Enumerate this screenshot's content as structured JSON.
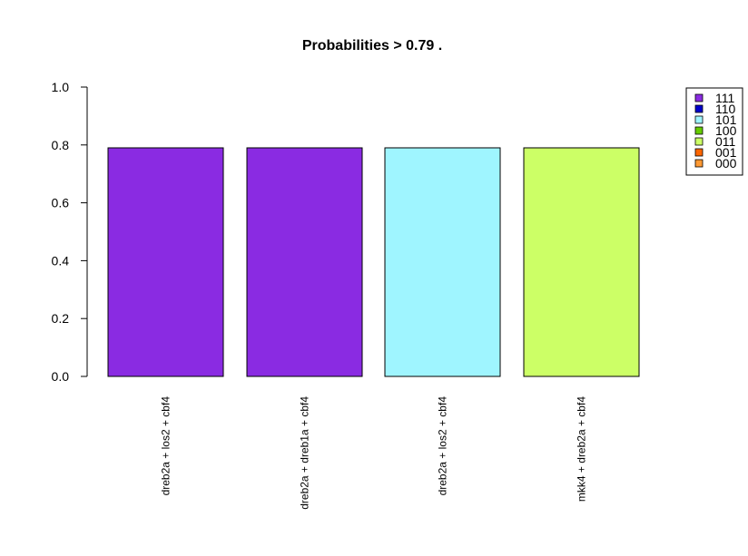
{
  "chart_data": {
    "type": "bar",
    "title": "Probabilities > 0.79 .",
    "xlabel": "",
    "ylabel": "",
    "ylim": [
      0,
      1
    ],
    "y_ticks": [
      "0.0",
      "0.2",
      "0.4",
      "0.6",
      "0.8",
      "1.0"
    ],
    "y_tick_values": [
      0,
      0.2,
      0.4,
      0.6,
      0.8,
      1.0
    ],
    "categories": [
      "dreb2a + los2 + cbf4",
      "dreb2a + dreb1a + cbf4",
      "dreb2a + los2 + cbf4",
      "mkk4 + dreb2a + cbf4"
    ],
    "values": [
      0.79,
      0.79,
      0.79,
      0.79
    ],
    "bar_colors": [
      "#8a2be2",
      "#8a2be2",
      "#9ff5ff",
      "#ccff66"
    ],
    "grid": false,
    "legend": {
      "placement": "top-right",
      "entries": [
        {
          "label": "111",
          "color": "#8a2be2"
        },
        {
          "label": "110",
          "color": "#0000cd"
        },
        {
          "label": "101",
          "color": "#9ff5ff"
        },
        {
          "label": "100",
          "color": "#66cc00"
        },
        {
          "label": "011",
          "color": "#ccff66"
        },
        {
          "label": "001",
          "color": "#ff6600"
        },
        {
          "label": "000",
          "color": "#ff9933"
        }
      ]
    }
  }
}
